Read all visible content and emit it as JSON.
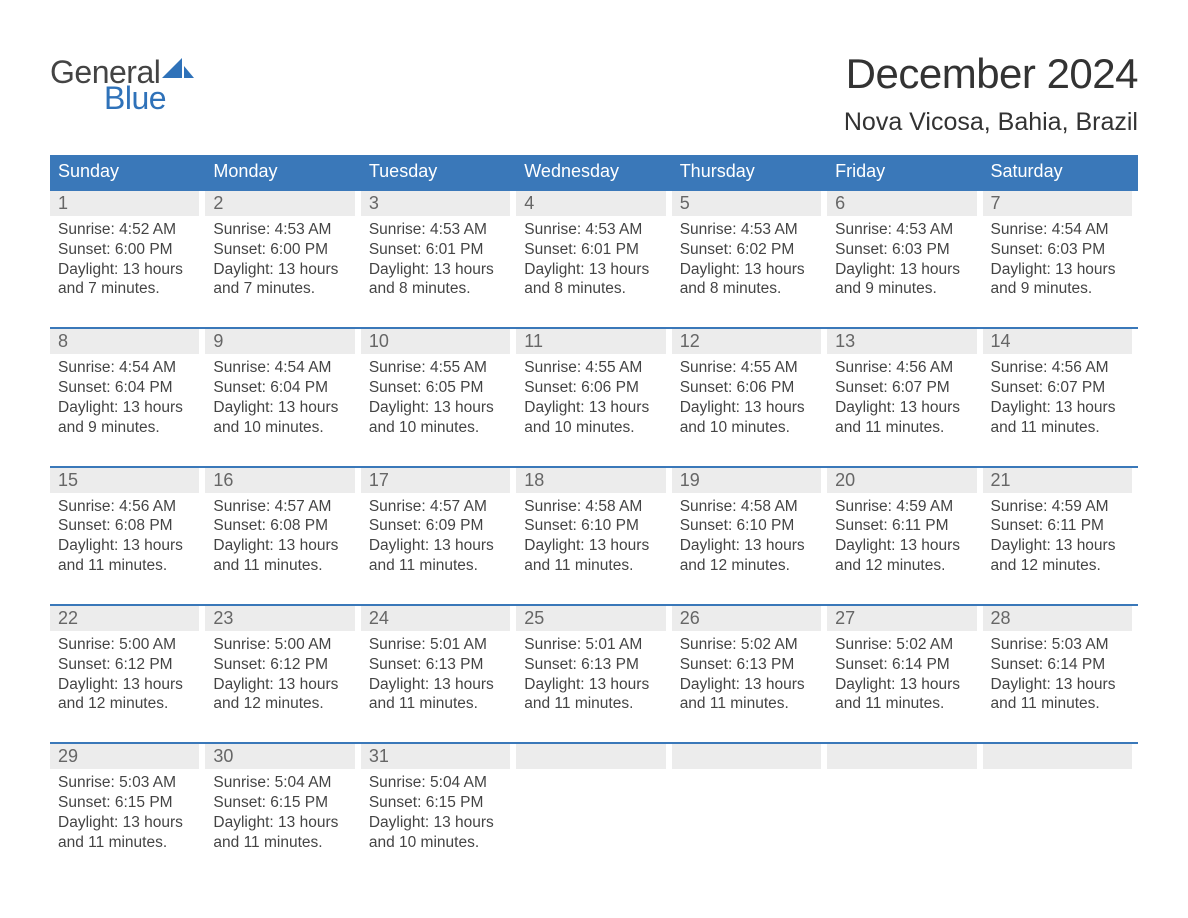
{
  "logo": {
    "word1": "General",
    "word2": "Blue",
    "sail_color": "#2f72b9",
    "text_dark": "#444444"
  },
  "title": "December 2024",
  "location": "Nova Vicosa, Bahia, Brazil",
  "colors": {
    "header_bg": "#3a78b9",
    "header_text": "#ffffff",
    "daynum_bg": "#ececec",
    "daynum_text": "#666666",
    "body_text": "#444444",
    "rule": "#3a78b9",
    "page_bg": "#ffffff"
  },
  "typography": {
    "title_fontsize": 42,
    "location_fontsize": 25,
    "dow_fontsize": 18,
    "daynum_fontsize": 18,
    "body_fontsize": 15.5
  },
  "days_of_week": [
    "Sunday",
    "Monday",
    "Tuesday",
    "Wednesday",
    "Thursday",
    "Friday",
    "Saturday"
  ],
  "weeks": [
    [
      {
        "n": "1",
        "sunrise": "Sunrise: 4:52 AM",
        "sunset": "Sunset: 6:00 PM",
        "day1": "Daylight: 13 hours",
        "day2": "and 7 minutes."
      },
      {
        "n": "2",
        "sunrise": "Sunrise: 4:53 AM",
        "sunset": "Sunset: 6:00 PM",
        "day1": "Daylight: 13 hours",
        "day2": "and 7 minutes."
      },
      {
        "n": "3",
        "sunrise": "Sunrise: 4:53 AM",
        "sunset": "Sunset: 6:01 PM",
        "day1": "Daylight: 13 hours",
        "day2": "and 8 minutes."
      },
      {
        "n": "4",
        "sunrise": "Sunrise: 4:53 AM",
        "sunset": "Sunset: 6:01 PM",
        "day1": "Daylight: 13 hours",
        "day2": "and 8 minutes."
      },
      {
        "n": "5",
        "sunrise": "Sunrise: 4:53 AM",
        "sunset": "Sunset: 6:02 PM",
        "day1": "Daylight: 13 hours",
        "day2": "and 8 minutes."
      },
      {
        "n": "6",
        "sunrise": "Sunrise: 4:53 AM",
        "sunset": "Sunset: 6:03 PM",
        "day1": "Daylight: 13 hours",
        "day2": "and 9 minutes."
      },
      {
        "n": "7",
        "sunrise": "Sunrise: 4:54 AM",
        "sunset": "Sunset: 6:03 PM",
        "day1": "Daylight: 13 hours",
        "day2": "and 9 minutes."
      }
    ],
    [
      {
        "n": "8",
        "sunrise": "Sunrise: 4:54 AM",
        "sunset": "Sunset: 6:04 PM",
        "day1": "Daylight: 13 hours",
        "day2": "and 9 minutes."
      },
      {
        "n": "9",
        "sunrise": "Sunrise: 4:54 AM",
        "sunset": "Sunset: 6:04 PM",
        "day1": "Daylight: 13 hours",
        "day2": "and 10 minutes."
      },
      {
        "n": "10",
        "sunrise": "Sunrise: 4:55 AM",
        "sunset": "Sunset: 6:05 PM",
        "day1": "Daylight: 13 hours",
        "day2": "and 10 minutes."
      },
      {
        "n": "11",
        "sunrise": "Sunrise: 4:55 AM",
        "sunset": "Sunset: 6:06 PM",
        "day1": "Daylight: 13 hours",
        "day2": "and 10 minutes."
      },
      {
        "n": "12",
        "sunrise": "Sunrise: 4:55 AM",
        "sunset": "Sunset: 6:06 PM",
        "day1": "Daylight: 13 hours",
        "day2": "and 10 minutes."
      },
      {
        "n": "13",
        "sunrise": "Sunrise: 4:56 AM",
        "sunset": "Sunset: 6:07 PM",
        "day1": "Daylight: 13 hours",
        "day2": "and 11 minutes."
      },
      {
        "n": "14",
        "sunrise": "Sunrise: 4:56 AM",
        "sunset": "Sunset: 6:07 PM",
        "day1": "Daylight: 13 hours",
        "day2": "and 11 minutes."
      }
    ],
    [
      {
        "n": "15",
        "sunrise": "Sunrise: 4:56 AM",
        "sunset": "Sunset: 6:08 PM",
        "day1": "Daylight: 13 hours",
        "day2": "and 11 minutes."
      },
      {
        "n": "16",
        "sunrise": "Sunrise: 4:57 AM",
        "sunset": "Sunset: 6:08 PM",
        "day1": "Daylight: 13 hours",
        "day2": "and 11 minutes."
      },
      {
        "n": "17",
        "sunrise": "Sunrise: 4:57 AM",
        "sunset": "Sunset: 6:09 PM",
        "day1": "Daylight: 13 hours",
        "day2": "and 11 minutes."
      },
      {
        "n": "18",
        "sunrise": "Sunrise: 4:58 AM",
        "sunset": "Sunset: 6:10 PM",
        "day1": "Daylight: 13 hours",
        "day2": "and 11 minutes."
      },
      {
        "n": "19",
        "sunrise": "Sunrise: 4:58 AM",
        "sunset": "Sunset: 6:10 PM",
        "day1": "Daylight: 13 hours",
        "day2": "and 12 minutes."
      },
      {
        "n": "20",
        "sunrise": "Sunrise: 4:59 AM",
        "sunset": "Sunset: 6:11 PM",
        "day1": "Daylight: 13 hours",
        "day2": "and 12 minutes."
      },
      {
        "n": "21",
        "sunrise": "Sunrise: 4:59 AM",
        "sunset": "Sunset: 6:11 PM",
        "day1": "Daylight: 13 hours",
        "day2": "and 12 minutes."
      }
    ],
    [
      {
        "n": "22",
        "sunrise": "Sunrise: 5:00 AM",
        "sunset": "Sunset: 6:12 PM",
        "day1": "Daylight: 13 hours",
        "day2": "and 12 minutes."
      },
      {
        "n": "23",
        "sunrise": "Sunrise: 5:00 AM",
        "sunset": "Sunset: 6:12 PM",
        "day1": "Daylight: 13 hours",
        "day2": "and 12 minutes."
      },
      {
        "n": "24",
        "sunrise": "Sunrise: 5:01 AM",
        "sunset": "Sunset: 6:13 PM",
        "day1": "Daylight: 13 hours",
        "day2": "and 11 minutes."
      },
      {
        "n": "25",
        "sunrise": "Sunrise: 5:01 AM",
        "sunset": "Sunset: 6:13 PM",
        "day1": "Daylight: 13 hours",
        "day2": "and 11 minutes."
      },
      {
        "n": "26",
        "sunrise": "Sunrise: 5:02 AM",
        "sunset": "Sunset: 6:13 PM",
        "day1": "Daylight: 13 hours",
        "day2": "and 11 minutes."
      },
      {
        "n": "27",
        "sunrise": "Sunrise: 5:02 AM",
        "sunset": "Sunset: 6:14 PM",
        "day1": "Daylight: 13 hours",
        "day2": "and 11 minutes."
      },
      {
        "n": "28",
        "sunrise": "Sunrise: 5:03 AM",
        "sunset": "Sunset: 6:14 PM",
        "day1": "Daylight: 13 hours",
        "day2": "and 11 minutes."
      }
    ],
    [
      {
        "n": "29",
        "sunrise": "Sunrise: 5:03 AM",
        "sunset": "Sunset: 6:15 PM",
        "day1": "Daylight: 13 hours",
        "day2": "and 11 minutes."
      },
      {
        "n": "30",
        "sunrise": "Sunrise: 5:04 AM",
        "sunset": "Sunset: 6:15 PM",
        "day1": "Daylight: 13 hours",
        "day2": "and 11 minutes."
      },
      {
        "n": "31",
        "sunrise": "Sunrise: 5:04 AM",
        "sunset": "Sunset: 6:15 PM",
        "day1": "Daylight: 13 hours",
        "day2": "and 10 minutes."
      },
      null,
      null,
      null,
      null
    ]
  ]
}
